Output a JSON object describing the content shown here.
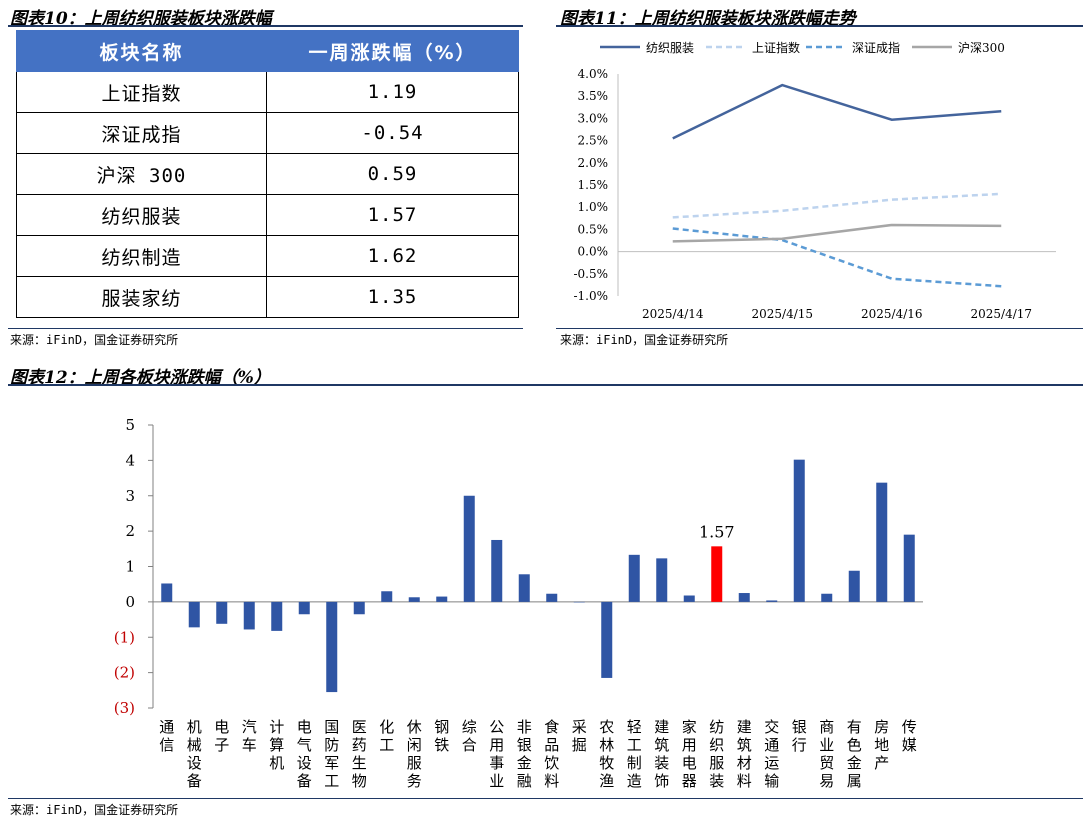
{
  "fig10": {
    "title": "图表10：上周纺织服装板块涨跌幅",
    "headers": [
      "板块名称",
      "一周涨跌幅（%）"
    ],
    "rows": [
      {
        "name": "上证指数",
        "value": "1.19"
      },
      {
        "name": "深证成指",
        "value": "-0.54"
      },
      {
        "name": "沪深 300",
        "value": "0.59"
      },
      {
        "name": "纺织服装",
        "value": "1.57"
      },
      {
        "name": "纺织制造",
        "value": "1.62"
      },
      {
        "name": "服装家纺",
        "value": "1.35"
      }
    ],
    "source": "来源：iFinD，国金证券研究所"
  },
  "fig11": {
    "title": "图表11：上周纺织服装板块涨跌幅走势",
    "source": "来源：iFinD，国金证券研究所"
  },
  "fig12": {
    "title": "图表12：上周各板块涨跌幅（%）",
    "source": "来源：iFinD，国金证券研究所"
  },
  "chart_data": [
    {
      "type": "line",
      "title": "",
      "x": [
        "2025/4/14",
        "2025/4/15",
        "2025/4/16",
        "2025/4/17"
      ],
      "ylim": [
        -0.01,
        0.04
      ],
      "ytick_labels": [
        "-1.0%",
        "-0.5%",
        "0.0%",
        "0.5%",
        "1.0%",
        "1.5%",
        "2.0%",
        "2.5%",
        "3.0%",
        "3.5%",
        "4.0%"
      ],
      "legend_position": "top",
      "series": [
        {
          "name": "纺织服装",
          "style": "solid",
          "color": "#44649c",
          "values": [
            0.0255,
            0.0375,
            0.0297,
            0.0316
          ]
        },
        {
          "name": "上证指数",
          "style": "dashed",
          "color": "#bdd3ee",
          "values": [
            0.0077,
            0.0092,
            0.0117,
            0.013
          ]
        },
        {
          "name": "深证成指",
          "style": "dashed",
          "color": "#5b9bd5",
          "values": [
            0.0052,
            0.0026,
            -0.0061,
            -0.0078
          ]
        },
        {
          "name": "沪深300",
          "style": "solid",
          "color": "#a6a6a6",
          "values": [
            0.0023,
            0.0029,
            0.006,
            0.0058
          ]
        }
      ]
    },
    {
      "type": "bar",
      "title": "",
      "ylim": [
        -3,
        5
      ],
      "ytick_labels": [
        "5",
        "4",
        "3",
        "2",
        "1",
        "0",
        "(1)",
        "(2)",
        "(3)"
      ],
      "negative_tick_color": "#c00000",
      "bar_color": "#2f55a4",
      "highlight_color": "#ff0000",
      "highlight_index": 20,
      "highlight_label": "1.57",
      "categories": [
        "通信",
        "机械设备",
        "电子",
        "汽车",
        "计算机",
        "电气设备",
        "国防军工",
        "医药生物",
        "化工",
        "休闲服务",
        "钢铁",
        "综合",
        "公用事业",
        "非银金融",
        "食品饮料",
        "采掘",
        "农林牧渔",
        "轻工制造",
        "建筑装饰",
        "家用电器",
        "纺织服装",
        "建筑材料",
        "交通运输",
        "银行",
        "商业贸易",
        "有色金属",
        "房地产",
        "传媒"
      ],
      "values": [
        0.52,
        -0.72,
        -0.62,
        -0.78,
        -0.82,
        -0.35,
        -2.55,
        -0.35,
        0.3,
        0.13,
        0.15,
        3.0,
        1.75,
        0.78,
        0.23,
        0.0,
        -2.15,
        1.33,
        1.23,
        0.18,
        1.57,
        0.25,
        0.04,
        4.02,
        0.23,
        0.88,
        3.37,
        1.9
      ]
    }
  ]
}
